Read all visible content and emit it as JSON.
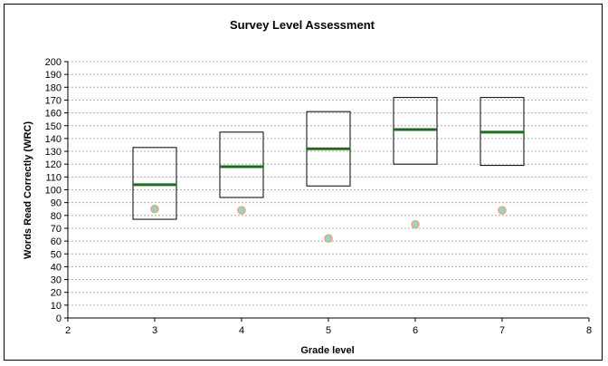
{
  "chart_data": {
    "type": "scatter",
    "title": "Survey Level Assessment",
    "xlabel": "Grade level",
    "ylabel": "Words Read Correctly (WRC)",
    "xlim": [
      2,
      8
    ],
    "ylim": [
      0,
      200
    ],
    "x_ticks": [
      2,
      3,
      4,
      5,
      6,
      7,
      8
    ],
    "y_ticks": [
      0,
      10,
      20,
      30,
      40,
      50,
      60,
      70,
      80,
      90,
      100,
      110,
      120,
      130,
      140,
      150,
      160,
      170,
      180,
      190,
      200
    ],
    "grid": {
      "horizontal": true,
      "style": "dashed"
    },
    "legend": "none",
    "boxes": [
      {
        "grade": 3,
        "low": 77,
        "median": 104,
        "high": 133
      },
      {
        "grade": 4,
        "low": 94,
        "median": 118,
        "high": 145
      },
      {
        "grade": 5,
        "low": 103,
        "median": 132,
        "high": 161
      },
      {
        "grade": 6,
        "low": 120,
        "median": 147,
        "high": 172
      },
      {
        "grade": 7,
        "low": 119,
        "median": 145,
        "high": 172
      }
    ],
    "points": [
      {
        "x": 3,
        "y": 85
      },
      {
        "x": 4,
        "y": 84
      },
      {
        "x": 5,
        "y": 62
      },
      {
        "x": 6,
        "y": 73
      },
      {
        "x": 7,
        "y": 84
      }
    ],
    "colors": {
      "median": "#1f6b1f",
      "point_fill": "#8fd3e8",
      "point_stroke": "#f2a65a",
      "grid": "#b0b0b0",
      "box": "#000000"
    }
  }
}
